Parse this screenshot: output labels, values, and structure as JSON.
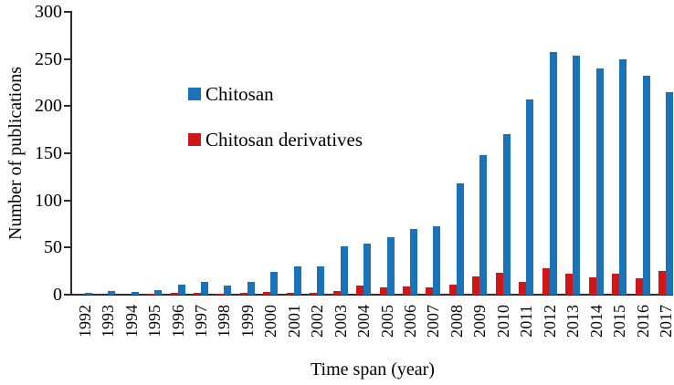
{
  "chart_data": {
    "type": "bar",
    "title": "",
    "xlabel": "Time span (year)",
    "ylabel": "Number of publications",
    "ylim": [
      0,
      300
    ],
    "yticks": [
      0,
      50,
      100,
      150,
      200,
      250,
      300
    ],
    "grid": false,
    "legend_position": "inside-upper-left",
    "bar_order_note": "each year shows derivative (red) bar on left, chitosan (blue) bar on right",
    "categories": [
      "1992",
      "1993",
      "1994",
      "1995",
      "1996",
      "1997",
      "1998",
      "1999",
      "2000",
      "2001",
      "2002",
      "2003",
      "2004",
      "2005",
      "2006",
      "2007",
      "2008",
      "2009",
      "2010",
      "2011",
      "2012",
      "2013",
      "2014",
      "2015",
      "2016",
      "2017"
    ],
    "series": [
      {
        "name": "Chitosan",
        "color": "#1a72b8",
        "values": [
          2,
          4,
          3,
          5,
          11,
          14,
          10,
          14,
          24,
          30,
          30,
          51,
          54,
          61,
          70,
          73,
          118,
          148,
          170,
          207,
          257,
          254,
          240,
          250,
          232,
          215
        ]
      },
      {
        "name": "Chitosan derivatives",
        "color": "#cd1719",
        "values": [
          0,
          0,
          0,
          1,
          2,
          2,
          1,
          2,
          3,
          2,
          2,
          4,
          10,
          8,
          9,
          8,
          11,
          19,
          23,
          14,
          28,
          22,
          18,
          22,
          17,
          25
        ]
      }
    ]
  }
}
